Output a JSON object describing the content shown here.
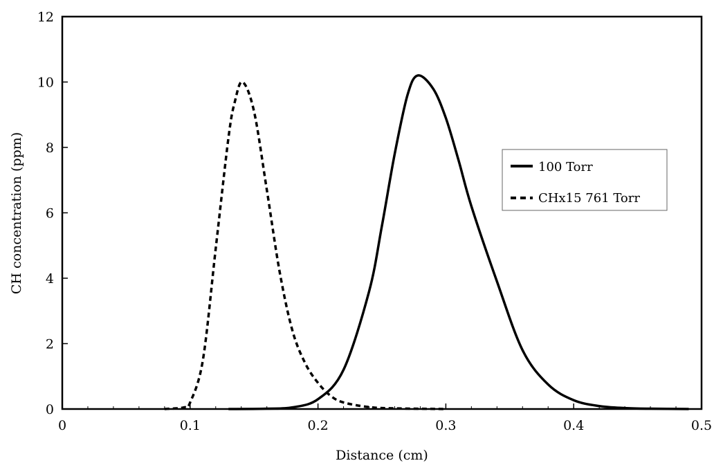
{
  "chart_data": {
    "type": "line",
    "title": "",
    "xlabel": "Distance (cm)",
    "ylabel": "CH concentration (ppm)",
    "xlim": [
      0,
      0.5
    ],
    "ylim": [
      0,
      12
    ],
    "xticks": [
      "0",
      "0.1",
      "0.2",
      "0.3",
      "0.4",
      "0.5"
    ],
    "yticks": [
      "0",
      "2",
      "4",
      "6",
      "8",
      "10",
      "12"
    ],
    "grid": false,
    "legend_position": "right",
    "series": [
      {
        "name": "100 Torr",
        "style": "solid",
        "color": "#000000",
        "x": [
          0.13,
          0.16,
          0.18,
          0.2,
          0.22,
          0.24,
          0.25,
          0.26,
          0.27,
          0.278,
          0.29,
          0.3,
          0.31,
          0.32,
          0.34,
          0.36,
          0.38,
          0.4,
          0.42,
          0.44,
          0.46,
          0.49
        ],
        "y": [
          0.0,
          0.01,
          0.05,
          0.3,
          1.2,
          3.6,
          5.6,
          7.8,
          9.6,
          10.2,
          9.8,
          8.9,
          7.6,
          6.2,
          3.9,
          1.8,
          0.75,
          0.27,
          0.09,
          0.03,
          0.01,
          0.0
        ]
      },
      {
        "name": "CHx15 761 Torr",
        "style": "dashed",
        "color": "#000000",
        "x": [
          0.08,
          0.095,
          0.1,
          0.11,
          0.12,
          0.13,
          0.135,
          0.141,
          0.15,
          0.16,
          0.17,
          0.18,
          0.19,
          0.2,
          0.21,
          0.22,
          0.24,
          0.26,
          0.3
        ],
        "y": [
          0.0,
          0.05,
          0.2,
          1.5,
          4.9,
          8.3,
          9.4,
          10.0,
          9.1,
          6.7,
          4.2,
          2.4,
          1.4,
          0.8,
          0.4,
          0.2,
          0.06,
          0.02,
          0.0
        ]
      }
    ]
  }
}
